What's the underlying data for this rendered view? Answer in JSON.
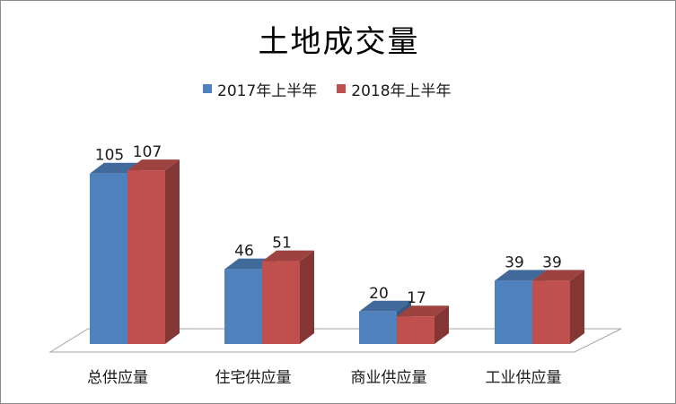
{
  "chart_data": {
    "type": "bar",
    "title": "土地成交量",
    "categories": [
      "总供应量",
      "住宅供应量",
      "商业供应量",
      "工业供应量"
    ],
    "series": [
      {
        "name": "2017年上半年",
        "values": [
          105,
          46,
          20,
          39
        ],
        "color": "#4F81BD"
      },
      {
        "name": "2018年上半年",
        "values": [
          107,
          51,
          17,
          39
        ],
        "color": "#C0504D"
      }
    ],
    "xlabel": "",
    "ylabel": "",
    "ylim": [
      0,
      110
    ],
    "grid": false,
    "legend": "top",
    "style": "3d-clustered-column"
  }
}
